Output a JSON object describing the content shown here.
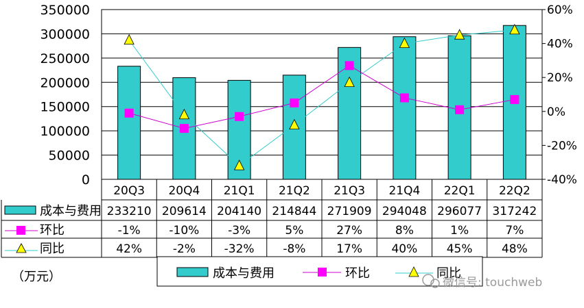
{
  "chart_data": {
    "type": "bar",
    "categories": [
      "20Q3",
      "20Q4",
      "21Q1",
      "21Q2",
      "21Q3",
      "21Q4",
      "22Q1",
      "22Q2"
    ],
    "series": [
      {
        "name": "成本与费用",
        "type": "bar",
        "axis": "left",
        "values": [
          233210,
          209614,
          204140,
          214844,
          271909,
          294048,
          296077,
          317242
        ],
        "labels": [
          "233210",
          "209614",
          "204140",
          "214844",
          "271909",
          "294048",
          "296077",
          "317242"
        ]
      },
      {
        "name": "环比",
        "type": "line",
        "axis": "right",
        "marker": "square",
        "values": [
          -1,
          -10,
          -3,
          5,
          27,
          8,
          1,
          7
        ],
        "labels": [
          "-1%",
          "-10%",
          "-3%",
          "5%",
          "27%",
          "8%",
          "1%",
          "7%"
        ]
      },
      {
        "name": "同比",
        "type": "line",
        "axis": "right",
        "marker": "triangle",
        "values": [
          42,
          -2,
          -32,
          -8,
          17,
          40,
          45,
          48
        ],
        "labels": [
          "42%",
          "-2%",
          "-32%",
          "-8%",
          "17%",
          "40%",
          "45%",
          "48%"
        ]
      }
    ],
    "ylim_left": [
      0,
      350000
    ],
    "ylim_right": [
      -40,
      60
    ],
    "yticks_left": [
      "350000",
      "300000",
      "250000",
      "200000",
      "150000",
      "100000",
      "50000",
      "0"
    ],
    "yticks_right": [
      "60%",
      "40%",
      "20%",
      "0%",
      "-20%",
      "-40%"
    ],
    "unit_label": "（万元）",
    "grid": true,
    "legend_position": "bottom",
    "colors": {
      "bar": "#33CCCC",
      "huanbi": "#CC00CC",
      "huanbi_marker": "#FF00FF",
      "tongbi": "#33CCCC",
      "tongbi_marker": "#FFFF00"
    }
  },
  "watermark": {
    "text": "微信号: touchweb"
  }
}
